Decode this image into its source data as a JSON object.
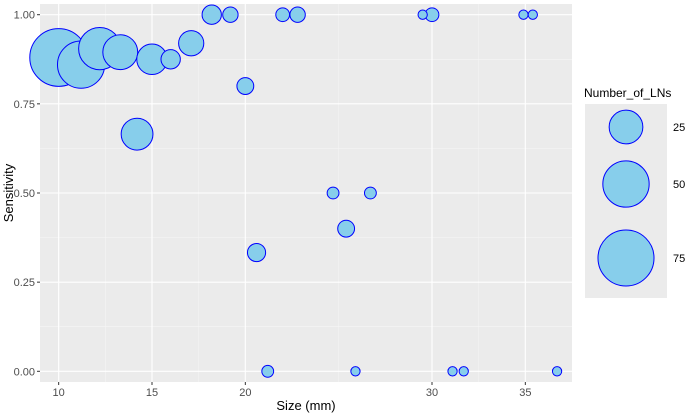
{
  "chart_data": {
    "type": "scatter",
    "title": "",
    "xlabel": "Size (mm)",
    "ylabel": "Sensitivity",
    "xlim": [
      9,
      37.5
    ],
    "ylim": [
      -0.03,
      1.03
    ],
    "xticks": [
      10,
      15,
      20,
      30,
      35
    ],
    "xtick_labels": [
      "10",
      "15",
      "20",
      "30",
      "35"
    ],
    "yticks": [
      0,
      0.25,
      0.5,
      0.75,
      1.0
    ],
    "ytick_labels": [
      "0.00",
      "0.25",
      "0.50",
      "0.75",
      "1.00"
    ],
    "grid": true,
    "point_fill": "#87ceeb",
    "point_stroke": "#0000ff",
    "panel_background": "#ebebeb",
    "size_legend": {
      "title": "Number_of_LNs",
      "placement": "right",
      "entries": [
        {
          "label": "25",
          "value": 25
        },
        {
          "label": "50",
          "value": 50
        },
        {
          "label": "75",
          "value": 75
        }
      ]
    },
    "points": [
      {
        "x": 10.0,
        "y": 0.88,
        "n": 80
      },
      {
        "x": 11.2,
        "y": 0.86,
        "n": 52
      },
      {
        "x": 12.2,
        "y": 0.905,
        "n": 41
      },
      {
        "x": 13.3,
        "y": 0.895,
        "n": 27
      },
      {
        "x": 14.2,
        "y": 0.665,
        "n": 22
      },
      {
        "x": 15.0,
        "y": 0.875,
        "n": 20
      },
      {
        "x": 16.0,
        "y": 0.875,
        "n": 7
      },
      {
        "x": 17.1,
        "y": 0.92,
        "n": 13
      },
      {
        "x": 18.2,
        "y": 1.0,
        "n": 7
      },
      {
        "x": 19.2,
        "y": 1.0,
        "n": 4
      },
      {
        "x": 20.0,
        "y": 0.8,
        "n": 5
      },
      {
        "x": 20.6,
        "y": 0.333,
        "n": 6
      },
      {
        "x": 21.2,
        "y": 0.0,
        "n": 2
      },
      {
        "x": 22.0,
        "y": 1.0,
        "n": 3
      },
      {
        "x": 22.8,
        "y": 1.0,
        "n": 4
      },
      {
        "x": 24.7,
        "y": 0.5,
        "n": 2
      },
      {
        "x": 25.4,
        "y": 0.4,
        "n": 5
      },
      {
        "x": 25.9,
        "y": 0.0,
        "n": 1
      },
      {
        "x": 26.7,
        "y": 0.5,
        "n": 2
      },
      {
        "x": 29.5,
        "y": 1.0,
        "n": 1
      },
      {
        "x": 30.0,
        "y": 1.0,
        "n": 3
      },
      {
        "x": 31.1,
        "y": 0.0,
        "n": 1
      },
      {
        "x": 31.7,
        "y": 0.0,
        "n": 1
      },
      {
        "x": 34.9,
        "y": 1.0,
        "n": 1
      },
      {
        "x": 35.4,
        "y": 1.0,
        "n": 1
      },
      {
        "x": 36.7,
        "y": 0.0,
        "n": 1
      }
    ]
  }
}
